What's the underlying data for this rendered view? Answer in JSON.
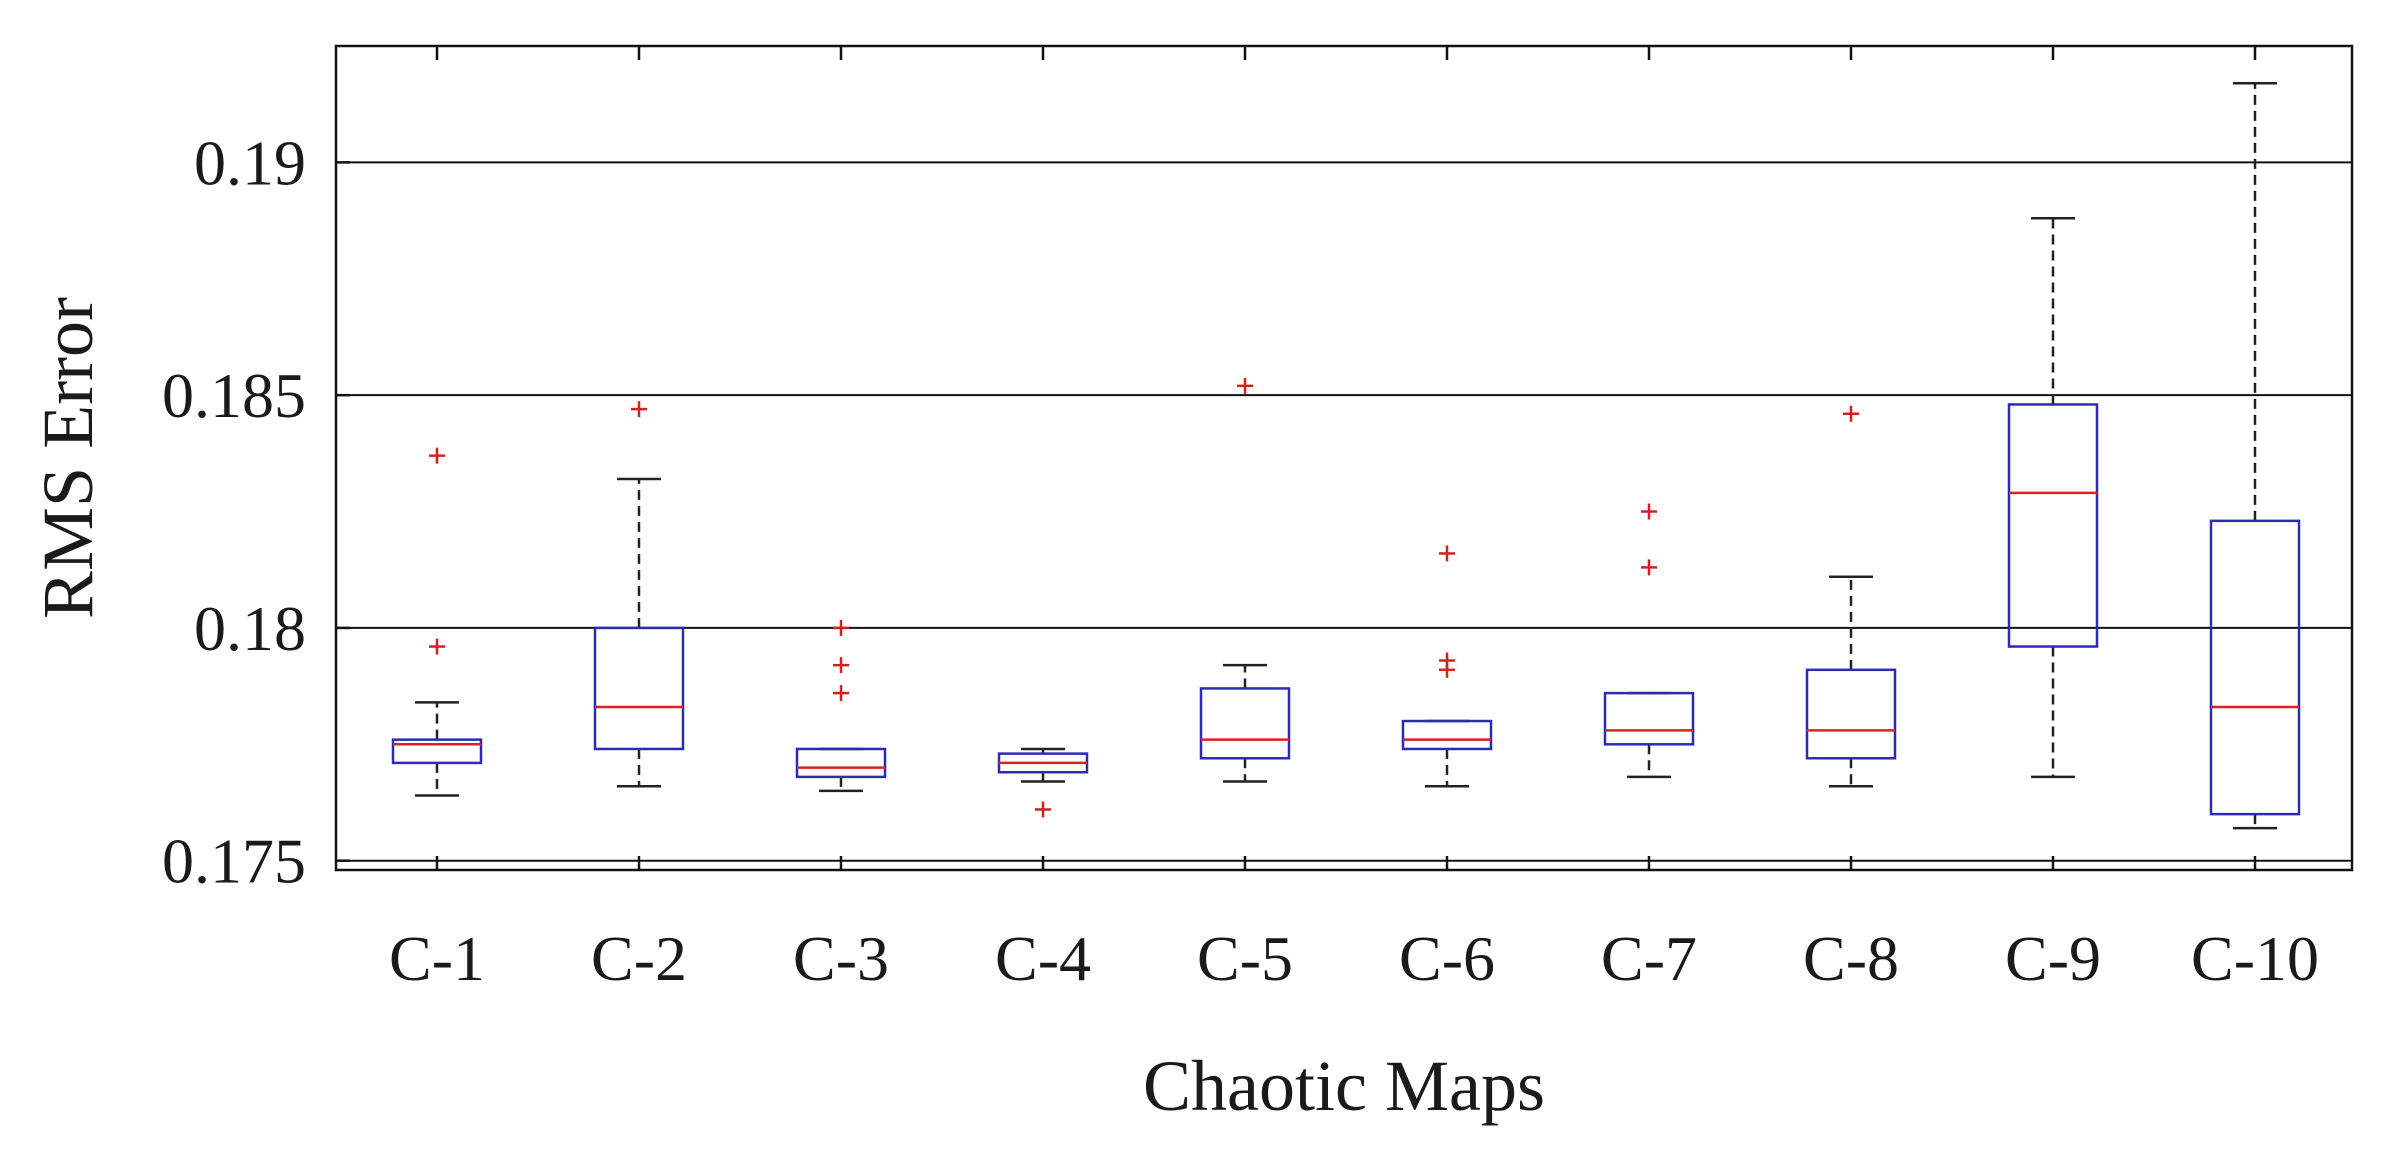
{
  "chart_data": {
    "type": "box",
    "title": "",
    "xlabel": "Chaotic Maps",
    "ylabel": "RMS Error",
    "ylim": [
      0.1748,
      0.1925
    ],
    "yticks": [
      0.175,
      0.18,
      0.185,
      0.19
    ],
    "ytick_labels": [
      "0.175",
      "0.18",
      "0.185",
      "0.19"
    ],
    "grid": "horizontal",
    "categories": [
      "C-1",
      "C-2",
      "C-3",
      "C-4",
      "C-5",
      "C-6",
      "C-7",
      "C-8",
      "C-9",
      "C-10"
    ],
    "boxes": [
      {
        "label": "C-1",
        "whisker_low": 0.1764,
        "q1": 0.1771,
        "median": 0.1775,
        "q3": 0.1776,
        "whisker_high": 0.1784,
        "outliers": [
          0.1796,
          0.1837
        ]
      },
      {
        "label": "C-2",
        "whisker_low": 0.1766,
        "q1": 0.1774,
        "median": 0.1783,
        "q3": 0.18,
        "whisker_high": 0.1832,
        "outliers": [
          0.1847
        ]
      },
      {
        "label": "C-3",
        "whisker_low": 0.1765,
        "q1": 0.1768,
        "median": 0.177,
        "q3": 0.1774,
        "whisker_high": 0.1774,
        "outliers": [
          0.1786,
          0.1792,
          0.18
        ]
      },
      {
        "label": "C-4",
        "whisker_low": 0.1767,
        "q1": 0.1769,
        "median": 0.1771,
        "q3": 0.1773,
        "whisker_high": 0.1774,
        "outliers": [
          0.1761
        ]
      },
      {
        "label": "C-5",
        "whisker_low": 0.1767,
        "q1": 0.1772,
        "median": 0.1776,
        "q3": 0.1787,
        "whisker_high": 0.1792,
        "outliers": [
          0.1852
        ]
      },
      {
        "label": "C-6",
        "whisker_low": 0.1766,
        "q1": 0.1774,
        "median": 0.1776,
        "q3": 0.178,
        "whisker_high": 0.178,
        "outliers": [
          0.1791,
          0.1793,
          0.1816
        ]
      },
      {
        "label": "C-7",
        "whisker_low": 0.1768,
        "q1": 0.1775,
        "median": 0.1778,
        "q3": 0.1786,
        "whisker_high": 0.1786,
        "outliers": [
          0.1813,
          0.1825
        ]
      },
      {
        "label": "C-8",
        "whisker_low": 0.1766,
        "q1": 0.1772,
        "median": 0.1778,
        "q3": 0.1791,
        "whisker_high": 0.1811,
        "outliers": [
          0.1846
        ]
      },
      {
        "label": "C-9",
        "whisker_low": 0.1768,
        "q1": 0.1796,
        "median": 0.1829,
        "q3": 0.1848,
        "whisker_high": 0.1888,
        "outliers": []
      },
      {
        "label": "C-10",
        "whisker_low": 0.1757,
        "q1": 0.176,
        "median": 0.1783,
        "q3": 0.1823,
        "whisker_high": 0.1917,
        "outliers": []
      }
    ],
    "colors": {
      "box": "#2b2bb8",
      "median": "#e02020",
      "whisker": "#222222",
      "outlier": "#d42020",
      "grid": "#111111",
      "axis": "#111111"
    }
  }
}
